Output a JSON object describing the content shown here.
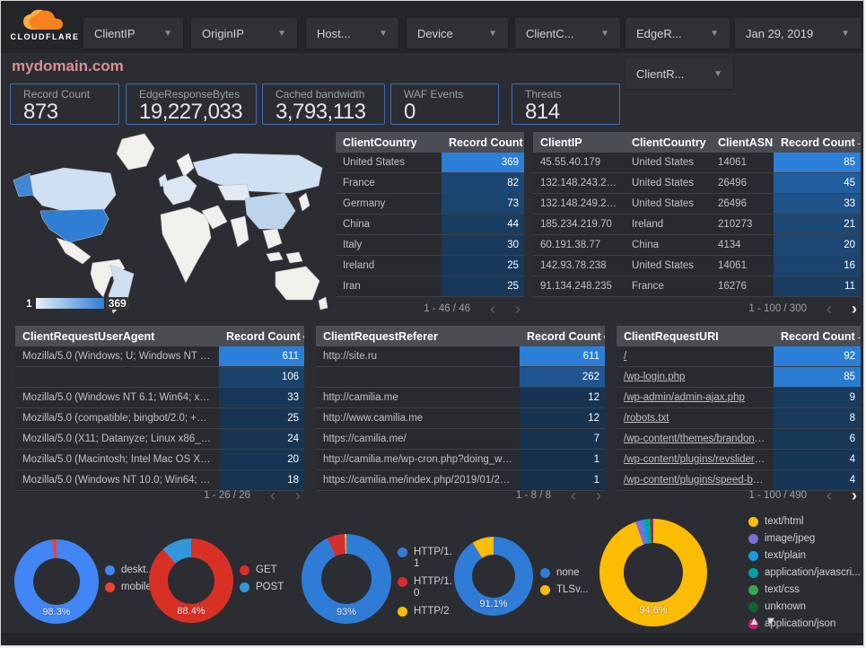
{
  "topbar": {
    "logo_text": "CLOUDFLARE",
    "filters": [
      {
        "label": "ClientIP"
      },
      {
        "label": "OriginIP"
      },
      {
        "label": "Host..."
      },
      {
        "label": "Device"
      },
      {
        "label": "ClientC..."
      },
      {
        "label": "EdgeR..."
      }
    ],
    "date_filter": "Jan 29, 2019",
    "secondary_filter": "ClientR..."
  },
  "page_title": "mydomain.com",
  "scorecards": [
    {
      "label": "Record Count",
      "value": "873"
    },
    {
      "label": "EdgeResponseBytes",
      "value": "19,227,033"
    },
    {
      "label": "Cached bandwidth",
      "value": "3,793,113"
    },
    {
      "label": "WAF Events",
      "value": "0"
    },
    {
      "label": "Threats",
      "value": "814"
    }
  ],
  "map": {
    "legend_min": "1",
    "legend_max": "369"
  },
  "tables": {
    "country": {
      "headers": [
        "ClientCountry",
        "Record Count"
      ],
      "sort_glyph": "▾",
      "max": 369,
      "rows": [
        {
          "cells": [
            "United States"
          ],
          "value": 369
        },
        {
          "cells": [
            "France"
          ],
          "value": 82
        },
        {
          "cells": [
            "Germany"
          ],
          "value": 73
        },
        {
          "cells": [
            "China"
          ],
          "value": 44
        },
        {
          "cells": [
            "Italy"
          ],
          "value": 30
        },
        {
          "cells": [
            "Ireland"
          ],
          "value": 25
        },
        {
          "cells": [
            "Iran"
          ],
          "value": 25
        }
      ],
      "pagination": {
        "text": "1 - 46 / 46",
        "prev_active": false,
        "next_active": false
      }
    },
    "clientip": {
      "headers": [
        "ClientIP",
        "ClientCountry",
        "ClientASN",
        "Record Count"
      ],
      "sort_glyph": "–",
      "max": 85,
      "rows": [
        {
          "cells": [
            "45.55.40.179",
            "United States",
            "14061"
          ],
          "value": 85
        },
        {
          "cells": [
            "132.148.243.238",
            "United States",
            "26496"
          ],
          "value": 45
        },
        {
          "cells": [
            "132.148.249.210",
            "United States",
            "26496"
          ],
          "value": 33
        },
        {
          "cells": [
            "185.234.219.70",
            "Ireland",
            "210273"
          ],
          "value": 21
        },
        {
          "cells": [
            "60.191.38.77",
            "China",
            "4134"
          ],
          "value": 20
        },
        {
          "cells": [
            "142.93.78.238",
            "United States",
            "14061"
          ],
          "value": 16
        },
        {
          "cells": [
            "91.134.248.235",
            "France",
            "16276"
          ],
          "value": 11
        }
      ],
      "pagination": {
        "text": "1 - 100 / 300",
        "prev_active": false,
        "next_active": true
      }
    },
    "useragent": {
      "headers": [
        "ClientRequestUserAgent",
        "Record Count"
      ],
      "sort_glyph": "▾",
      "max": 611,
      "rows": [
        {
          "cells": [
            "Mozilla/5.0 (Windows; U; Windows NT 5.1; en-U..."
          ],
          "value": 611
        },
        {
          "cells": [
            ""
          ],
          "value": 106
        },
        {
          "cells": [
            "Mozilla/5.0 (Windows NT 6.1; Win64; x64; rv:64..."
          ],
          "value": 33
        },
        {
          "cells": [
            "Mozilla/5.0 (compatible; bingbot/2.0; +http://w..."
          ],
          "value": 25
        },
        {
          "cells": [
            "Mozilla/5.0 (X11; Datanyze; Linux x86_64) Appl..."
          ],
          "value": 24
        },
        {
          "cells": [
            "Mozilla/5.0 (Macintosh; Intel Mac OS X 10.11; r..."
          ],
          "value": 20
        },
        {
          "cells": [
            "Mozilla/5.0 (Windows NT 10.0; Win64; x64) App..."
          ],
          "value": 18
        }
      ],
      "pagination": {
        "text": "1 - 26 / 26",
        "prev_active": false,
        "next_active": false
      }
    },
    "referer": {
      "headers": [
        "ClientRequestReferer",
        "Record Count"
      ],
      "sort_glyph": "▾",
      "max": 611,
      "rows": [
        {
          "cells": [
            "http://site.ru"
          ],
          "value": 611
        },
        {
          "cells": [
            ""
          ],
          "value": 262
        },
        {
          "cells": [
            "http://camilia.me"
          ],
          "value": 12
        },
        {
          "cells": [
            "http://www.camilia.me"
          ],
          "value": 12
        },
        {
          "cells": [
            "https://camilia.me/"
          ],
          "value": 7
        },
        {
          "cells": [
            "http://camilia.me/wp-cron.php?doing_wp_cron..."
          ],
          "value": 1
        },
        {
          "cells": [
            "https://camilia.me/index.php/2019/01/26/stor..."
          ],
          "value": 1
        }
      ],
      "pagination": {
        "text": "1 - 8 / 8",
        "prev_active": false,
        "next_active": false
      }
    },
    "uri": {
      "headers": [
        "ClientRequestURI",
        "Record Count"
      ],
      "sort_glyph": "–",
      "link_rows": true,
      "max": 92,
      "rows": [
        {
          "cells": [
            "/"
          ],
          "value": 92
        },
        {
          "cells": [
            "/wp-login.php"
          ],
          "value": 85
        },
        {
          "cells": [
            "/wp-admin/admin-ajax.php"
          ],
          "value": 9
        },
        {
          "cells": [
            "/robots.txt"
          ],
          "value": 8
        },
        {
          "cells": [
            "/wp-content/themes/brandon/plu..."
          ],
          "value": 6
        },
        {
          "cells": [
            "/wp-content/plugins/revslider/rs-p..."
          ],
          "value": 4
        },
        {
          "cells": [
            "/wp-content/plugins/speed-booste..."
          ],
          "value": 4
        }
      ],
      "pagination": {
        "text": "1 - 100 / 490",
        "prev_active": false,
        "next_active": true
      }
    }
  },
  "chart_data": [
    {
      "type": "pie",
      "name": "device-type-donut",
      "center_label": "98.3%",
      "slices": [
        {
          "label": "deskt...",
          "value": 98.3,
          "color": "#4285f4"
        },
        {
          "label": "mobile",
          "value": 1.7,
          "color": "#ea4336"
        }
      ]
    },
    {
      "type": "pie",
      "name": "request-method-donut",
      "center_label": "88.4%",
      "slices": [
        {
          "label": "GET",
          "value": 88.4,
          "color": "#d93025"
        },
        {
          "label": "POST",
          "value": 11.6,
          "color": "#3396db"
        }
      ]
    },
    {
      "type": "pie",
      "name": "http-protocol-donut",
      "center_label": "93%",
      "slices": [
        {
          "label": "HTTP/1.1",
          "value": 93.0,
          "color": "#2f7cd6"
        },
        {
          "label": "HTTP/1.0",
          "value": 6.4,
          "color": "#d32f2f"
        },
        {
          "label": "HTTP/2",
          "value": 0.6,
          "color": "#fbbc04"
        }
      ]
    },
    {
      "type": "pie",
      "name": "tls-version-donut",
      "center_label": "91.1%",
      "slices": [
        {
          "label": "none",
          "value": 91.1,
          "color": "#2f7cd6"
        },
        {
          "label": "TLSv...",
          "value": 8.9,
          "color": "#fbbc04"
        }
      ]
    },
    {
      "type": "pie",
      "name": "content-type-donut",
      "center_label": "94.6%",
      "slices": [
        {
          "label": "text/html",
          "value": 94.6,
          "color": "#fbbc04"
        },
        {
          "label": "image/jpeg",
          "value": 1.8,
          "color": "#7a6fd6"
        },
        {
          "label": "text/plain",
          "value": 1.1,
          "color": "#159ce0"
        },
        {
          "label": "application/javascri...",
          "value": 0.9,
          "color": "#00a2a8"
        },
        {
          "label": "text/css",
          "value": 0.6,
          "color": "#34a853"
        },
        {
          "label": "unknown",
          "value": 0.5,
          "color": "#0d652d"
        },
        {
          "label": "application/json",
          "value": 0.5,
          "color": "#cd1a77"
        }
      ]
    }
  ],
  "legend_pager": {
    "up": "▲",
    "down": "▼"
  },
  "colors": {
    "bar_bright": "#2b7fd9",
    "bar_base": "#16304a",
    "accent_border": "#3d6db8"
  }
}
